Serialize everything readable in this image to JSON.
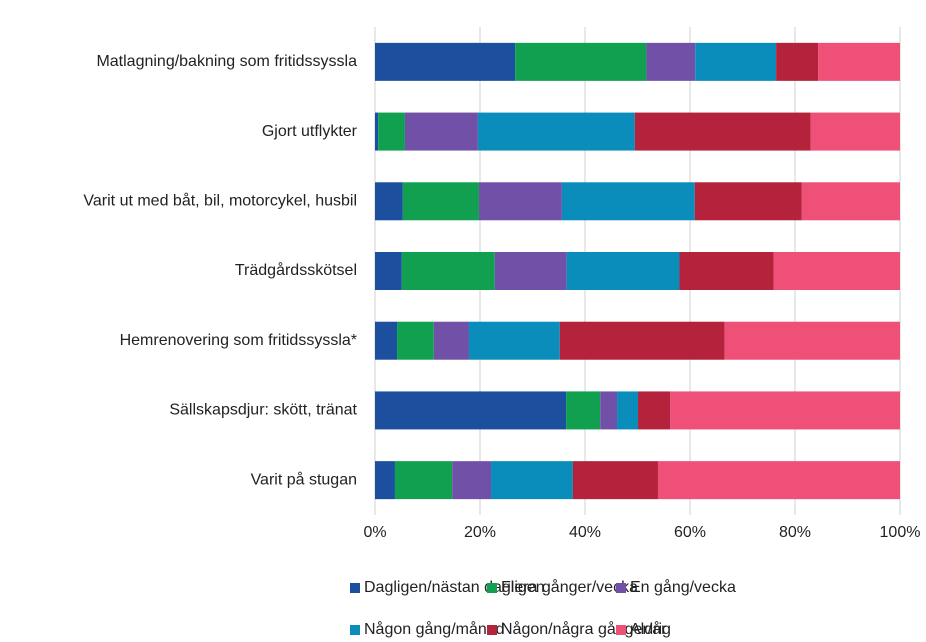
{
  "chart_data": {
    "type": "stacked_barh",
    "categories": [
      "Matlagning/bakning som fritidssyssla",
      "Gjort utflykter",
      "Varit ut med båt, bil, motorcykel, husbil",
      "Trädgårdsskötsel",
      "Hemrenovering som fritidssyssla*",
      "Sällskapsdjur: skött, tränat",
      "Varit på stugan"
    ],
    "series": [
      {
        "name": "Dagligen/nästan dagligen",
        "color": "#1c4f9e",
        "values": [
          26.7,
          0.6,
          5.3,
          5.1,
          4.2,
          36.4,
          3.8
        ]
      },
      {
        "name": "Flera gånger/vecka",
        "color": "#11a050",
        "values": [
          25.0,
          5.1,
          14.5,
          17.7,
          7.0,
          6.5,
          10.9
        ]
      },
      {
        "name": "En gång/vecka",
        "color": "#7151a7",
        "values": [
          9.3,
          13.9,
          15.8,
          13.7,
          6.7,
          3.2,
          7.4
        ]
      },
      {
        "name": "Någon gång/månad",
        "color": "#0b8dbb",
        "values": [
          15.4,
          29.9,
          25.3,
          21.5,
          17.3,
          4.0,
          15.6
        ]
      },
      {
        "name": "Någon/några gånger/år",
        "color": "#b5223b",
        "values": [
          8.0,
          33.5,
          20.4,
          17.9,
          31.4,
          6.1,
          16.2
        ]
      },
      {
        "name": "Aldrig",
        "color": "#ee5078",
        "values": [
          15.6,
          17.0,
          18.7,
          24.1,
          33.4,
          43.8,
          46.1
        ]
      }
    ],
    "xlim": [
      0,
      100
    ],
    "xticks": [
      {
        "value": 0,
        "label": "0%"
      },
      {
        "value": 20,
        "label": "20%"
      },
      {
        "value": 40,
        "label": "40%"
      },
      {
        "value": 60,
        "label": "60%"
      },
      {
        "value": 80,
        "label": "80%"
      },
      {
        "value": 100,
        "label": "100%"
      }
    ],
    "grid": true
  }
}
